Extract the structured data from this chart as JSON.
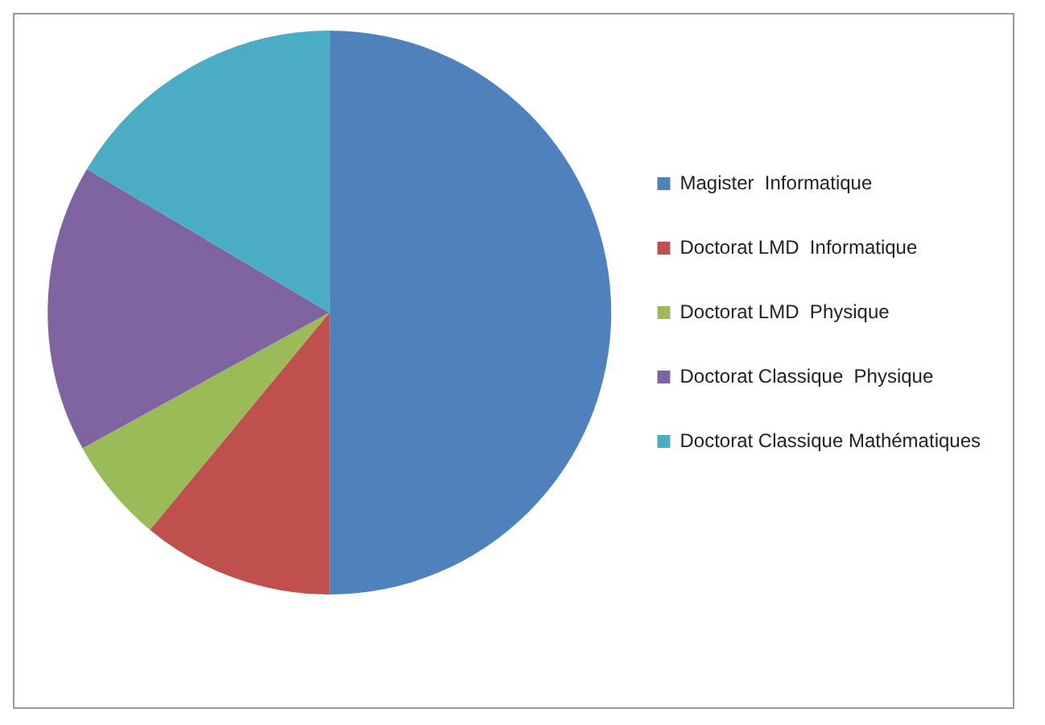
{
  "chart_data": {
    "type": "pie",
    "categories": [
      "Magister  Informatique",
      "Doctorat LMD  Informatique",
      "Doctorat LMD  Physique",
      "Doctorat Classique  Physique",
      "Doctorat Classique Mathématiques"
    ],
    "values": [
      50,
      11,
      6,
      16.5,
      16.5
    ],
    "colors": [
      "#4f81bd",
      "#c0504d",
      "#9bbb59",
      "#8064a2",
      "#4bacc6"
    ],
    "legend": "right"
  }
}
